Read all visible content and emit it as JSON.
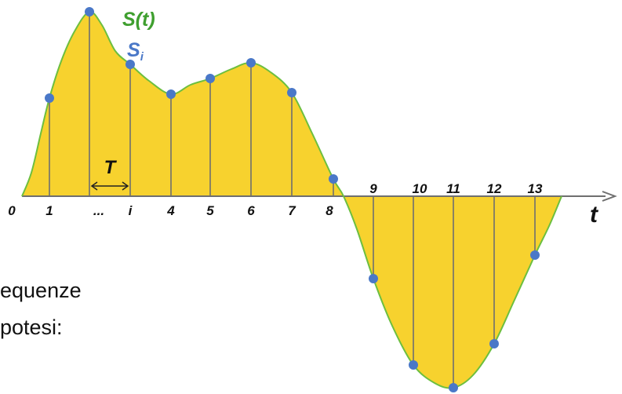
{
  "labels": {
    "signal": "S(t)",
    "sample_base": "S",
    "sample_sub": "i",
    "period": "T",
    "time_axis": "t"
  },
  "ticks": [
    "0",
    "1",
    "...",
    "i",
    "4",
    "5",
    "6",
    "7",
    "8",
    "9",
    "10",
    "11",
    "12",
    "13"
  ],
  "side_text": {
    "line1": "equenze",
    "line2": "potesi:"
  },
  "colors": {
    "fill": "#f7d22e",
    "curve": "#6cbf3f",
    "points": "#4a78c8",
    "axis": "#6f6f6f",
    "signal_label": "#3f9f2f",
    "sample_label": "#4a78c8"
  }
}
